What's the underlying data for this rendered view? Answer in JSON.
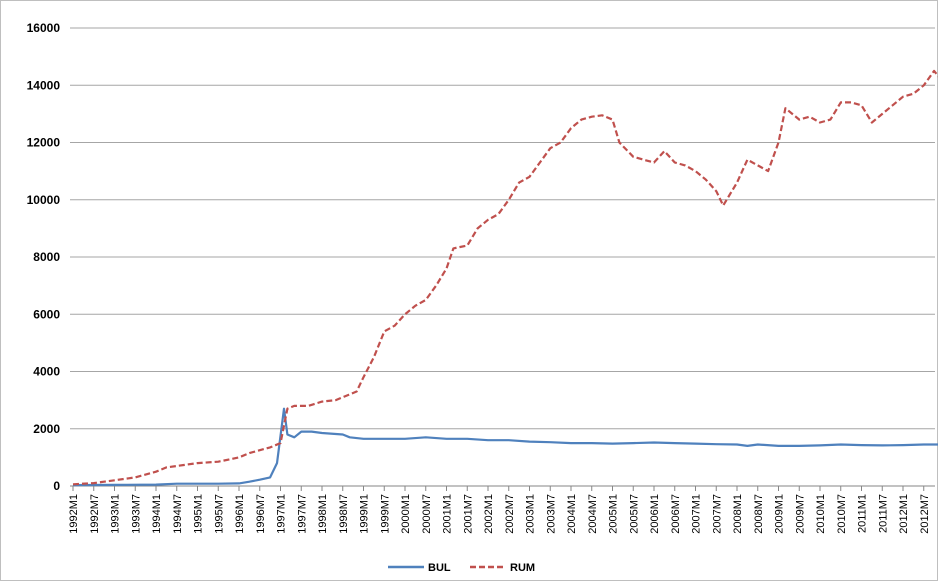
{
  "chart_data": {
    "type": "line",
    "title": "",
    "xlabel": "",
    "ylabel": "",
    "ylim": [
      0,
      16000
    ],
    "y_ticks": [
      0,
      2000,
      4000,
      6000,
      8000,
      10000,
      12000,
      14000,
      16000
    ],
    "x_tick_labels": [
      "1992M1",
      "1992M7",
      "1993M1",
      "1993M7",
      "1994M1",
      "1994M7",
      "1995M1",
      "1995M7",
      "1996M1",
      "1996M7",
      "1997M1",
      "1997M7",
      "1998M1",
      "1998M7",
      "1999M1",
      "1999M7",
      "2000M1",
      "2000M7",
      "2001M1",
      "2001M7",
      "2002M1",
      "2002M7",
      "2003M1",
      "2003M7",
      "2004M1",
      "2004M7",
      "2005M1",
      "2005M7",
      "2006M1",
      "2006M7",
      "2007M1",
      "2007M7",
      "2008M1",
      "2008M7",
      "2009M1",
      "2009M7",
      "2010M1",
      "2010M7",
      "2011M1",
      "2011M7",
      "2012M1",
      "2012M7"
    ],
    "grid": "horizontal",
    "legend_position": "bottom",
    "series": [
      {
        "name": "BUL",
        "color": "#4f81bd",
        "style": "solid",
        "points": [
          [
            "1992M1",
            30
          ],
          [
            "1993M1",
            40
          ],
          [
            "1994M1",
            50
          ],
          [
            "1994M7",
            80
          ],
          [
            "1995M1",
            80
          ],
          [
            "1995M7",
            80
          ],
          [
            "1996M1",
            90
          ],
          [
            "1996M4",
            150
          ],
          [
            "1996M7",
            220
          ],
          [
            "1996M10",
            300
          ],
          [
            "1996M12",
            800
          ],
          [
            "1997M2",
            2700
          ],
          [
            "1997M3",
            1800
          ],
          [
            "1997M5",
            1700
          ],
          [
            "1997M7",
            1900
          ],
          [
            "1997M10",
            1900
          ],
          [
            "1998M1",
            1850
          ],
          [
            "1998M7",
            1800
          ],
          [
            "1998M9",
            1700
          ],
          [
            "1999M1",
            1650
          ],
          [
            "1999M7",
            1650
          ],
          [
            "2000M1",
            1650
          ],
          [
            "2000M7",
            1700
          ],
          [
            "2001M1",
            1650
          ],
          [
            "2001M7",
            1650
          ],
          [
            "2002M1",
            1600
          ],
          [
            "2002M7",
            1600
          ],
          [
            "2003M1",
            1550
          ],
          [
            "2003M7",
            1530
          ],
          [
            "2004M1",
            1500
          ],
          [
            "2004M7",
            1500
          ],
          [
            "2005M1",
            1480
          ],
          [
            "2005M7",
            1500
          ],
          [
            "2006M1",
            1520
          ],
          [
            "2006M7",
            1500
          ],
          [
            "2007M1",
            1480
          ],
          [
            "2007M7",
            1460
          ],
          [
            "2008M1",
            1450
          ],
          [
            "2008M4",
            1400
          ],
          [
            "2008M7",
            1450
          ],
          [
            "2009M1",
            1400
          ],
          [
            "2009M7",
            1400
          ],
          [
            "2010M1",
            1420
          ],
          [
            "2010M7",
            1450
          ],
          [
            "2011M1",
            1430
          ],
          [
            "2011M7",
            1420
          ],
          [
            "2012M1",
            1430
          ],
          [
            "2012M7",
            1450
          ],
          [
            "2012M12",
            1450
          ]
        ]
      },
      {
        "name": "RUM",
        "color": "#c0504d",
        "style": "dashed",
        "points": [
          [
            "1992M1",
            60
          ],
          [
            "1992M7",
            100
          ],
          [
            "1993M1",
            200
          ],
          [
            "1993M7",
            300
          ],
          [
            "1994M1",
            500
          ],
          [
            "1994M4",
            650
          ],
          [
            "1994M7",
            700
          ],
          [
            "1995M1",
            800
          ],
          [
            "1995M7",
            850
          ],
          [
            "1996M1",
            1000
          ],
          [
            "1996M4",
            1150
          ],
          [
            "1996M7",
            1250
          ],
          [
            "1996M10",
            1350
          ],
          [
            "1997M1",
            1500
          ],
          [
            "1997M3",
            2700
          ],
          [
            "1997M5",
            2800
          ],
          [
            "1997M9",
            2800
          ],
          [
            "1998M1",
            2950
          ],
          [
            "1998M5",
            3000
          ],
          [
            "1998M9",
            3200
          ],
          [
            "1998M11",
            3300
          ],
          [
            "1999M1",
            3800
          ],
          [
            "1999M4",
            4500
          ],
          [
            "1999M7",
            5400
          ],
          [
            "1999M10",
            5600
          ],
          [
            "2000M1",
            6000
          ],
          [
            "2000M4",
            6300
          ],
          [
            "2000M7",
            6500
          ],
          [
            "2000M10",
            7000
          ],
          [
            "2001M1",
            7600
          ],
          [
            "2001M3",
            8300
          ],
          [
            "2001M7",
            8400
          ],
          [
            "2001M10",
            9000
          ],
          [
            "2002M1",
            9300
          ],
          [
            "2002M4",
            9500
          ],
          [
            "2002M7",
            10000
          ],
          [
            "2002M10",
            10600
          ],
          [
            "2003M1",
            10800
          ],
          [
            "2003M4",
            11300
          ],
          [
            "2003M7",
            11800
          ],
          [
            "2003M10",
            12000
          ],
          [
            "2004M1",
            12500
          ],
          [
            "2004M4",
            12800
          ],
          [
            "2004M7",
            12900
          ],
          [
            "2004M10",
            12950
          ],
          [
            "2005M1",
            12800
          ],
          [
            "2005M3",
            12000
          ],
          [
            "2005M7",
            11500
          ],
          [
            "2005M10",
            11400
          ],
          [
            "2006M1",
            11300
          ],
          [
            "2006M4",
            11700
          ],
          [
            "2006M7",
            11300
          ],
          [
            "2006M10",
            11200
          ],
          [
            "2007M1",
            11000
          ],
          [
            "2007M4",
            10700
          ],
          [
            "2007M7",
            10300
          ],
          [
            "2007M9",
            9800
          ],
          [
            "2008M1",
            10600
          ],
          [
            "2008M4",
            11400
          ],
          [
            "2008M7",
            11200
          ],
          [
            "2008M10",
            11000
          ],
          [
            "2009M1",
            12000
          ],
          [
            "2009M3",
            13200
          ],
          [
            "2009M7",
            12800
          ],
          [
            "2009M10",
            12900
          ],
          [
            "2010M1",
            12700
          ],
          [
            "2010M4",
            12800
          ],
          [
            "2010M7",
            13400
          ],
          [
            "2010M10",
            13400
          ],
          [
            "2011M1",
            13300
          ],
          [
            "2011M4",
            12700
          ],
          [
            "2011M7",
            13000
          ],
          [
            "2011M10",
            13300
          ],
          [
            "2012M1",
            13600
          ],
          [
            "2012M4",
            13700
          ],
          [
            "2012M7",
            14000
          ],
          [
            "2012M10",
            14500
          ],
          [
            "2012M12",
            14200
          ]
        ]
      }
    ]
  }
}
